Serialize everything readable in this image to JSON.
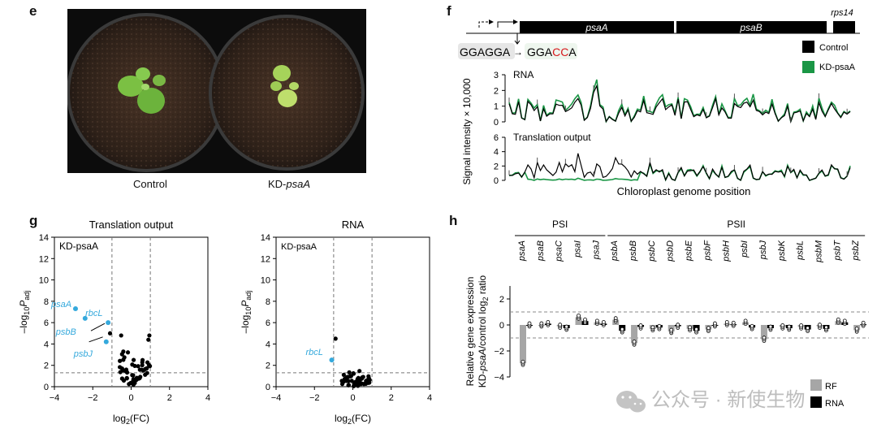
{
  "panels": {
    "e": "e",
    "f": "f",
    "g": "g",
    "h": "h"
  },
  "photo": {
    "caption_control": "Control",
    "caption_kd_prefix": "KD-",
    "caption_kd_gene": "psaA"
  },
  "gene_map": {
    "genes": [
      "psaA",
      "psaB",
      "rps14"
    ],
    "seq_original": "GGAGGA",
    "arrow": "→",
    "seq_mut_prefix": "GGA",
    "seq_mut_changed": "CC",
    "seq_mut_suffix": "A"
  },
  "colors": {
    "control": "#000000",
    "kd": "#1a9645",
    "accent": "#35a9dc",
    "mut": "#d7191c",
    "bar": "#a6a6a6"
  },
  "chart_data": [
    {
      "type": "line",
      "title": "RNA",
      "ylabel": "Signal intensity × 10,000",
      "xlabel": "Chloroplast genome position",
      "ylim": [
        0,
        3
      ],
      "yticks": [
        "0",
        "1",
        "2",
        "3"
      ],
      "series": [
        {
          "name": "Control"
        },
        {
          "name": "KD-psaA"
        }
      ]
    },
    {
      "type": "line",
      "title": "Translation output",
      "ylim": [
        0,
        6
      ],
      "yticks": [
        "0",
        "2",
        "4",
        "6"
      ],
      "series": [
        {
          "name": "Control"
        },
        {
          "name": "KD-psaA"
        }
      ]
    },
    {
      "type": "scatter",
      "title": "Translation output",
      "inset": "KD-psaA",
      "xlabel": "log2(FC)",
      "ylabel": "−log10Padj",
      "xlim": [
        -4,
        4
      ],
      "ylim": [
        0,
        14
      ],
      "xticks": [
        "−4",
        "−2",
        "0",
        "2",
        "4"
      ],
      "yticks": [
        "0",
        "2",
        "4",
        "6",
        "8",
        "10",
        "12",
        "14"
      ],
      "thresholds": {
        "x": [
          -1,
          1
        ],
        "y": 1.3
      },
      "labeled_points": [
        {
          "name": "psaA",
          "x": -2.9,
          "y": 7.3
        },
        {
          "name": "rbcL",
          "x": -1.2,
          "y": 6.0
        },
        {
          "name": "psbB",
          "x": -2.4,
          "y": 6.4
        },
        {
          "name": "psbJ",
          "x": -1.3,
          "y": 4.2
        }
      ]
    },
    {
      "type": "scatter",
      "title": "RNA",
      "inset": "KD-psaA",
      "xlabel": "log2(FC)",
      "ylabel": "−log10Padj",
      "xlim": [
        -4,
        4
      ],
      "ylim": [
        0,
        14
      ],
      "xticks": [
        "−4",
        "−2",
        "0",
        "2",
        "4"
      ],
      "yticks": [
        "0",
        "2",
        "4",
        "6",
        "8",
        "10",
        "12",
        "14"
      ],
      "thresholds": {
        "x": [
          -1,
          1
        ],
        "y": 1.3
      },
      "labeled_points": [
        {
          "name": "rbcL",
          "x": -1.1,
          "y": 2.5
        }
      ]
    },
    {
      "type": "bar",
      "ylabel": "Relative gene expression KD-psaA/control log2 ratio",
      "groups": [
        {
          "name": "PSI",
          "genes": [
            "psaA",
            "psaB",
            "psaC",
            "psaI",
            "psaJ"
          ]
        },
        {
          "name": "PSII",
          "genes": [
            "psbA",
            "psbB",
            "psbC",
            "psbD",
            "psbE",
            "psbF",
            "psbH",
            "psbI",
            "psbJ",
            "psbK",
            "psbL",
            "psbM",
            "psbT",
            "psbZ"
          ]
        }
      ],
      "ylim": [
        -4,
        3
      ],
      "yticks": [
        "−4",
        "−2",
        "0",
        "2"
      ],
      "series": [
        {
          "name": "RF",
          "values": [
            -2.95,
            0.0,
            -0.1,
            0.6,
            0.2,
            0.4,
            -1.4,
            -0.3,
            -0.5,
            -0.3,
            -0.35,
            0.1,
            0.2,
            -1.1,
            -0.15,
            -0.15,
            -0.1,
            0.3,
            -0.4
          ]
        },
        {
          "name": "RNA",
          "values": [
            0.0,
            0.1,
            -0.25,
            0.3,
            0.1,
            -0.45,
            -0.15,
            -0.2,
            -0.1,
            -0.45,
            0.0,
            0.05,
            -0.2,
            -0.25,
            -0.25,
            -0.35,
            -0.3,
            0.2,
            0.05
          ]
        }
      ]
    }
  ],
  "watermark": {
    "text": "公众号 · 新使生物"
  }
}
